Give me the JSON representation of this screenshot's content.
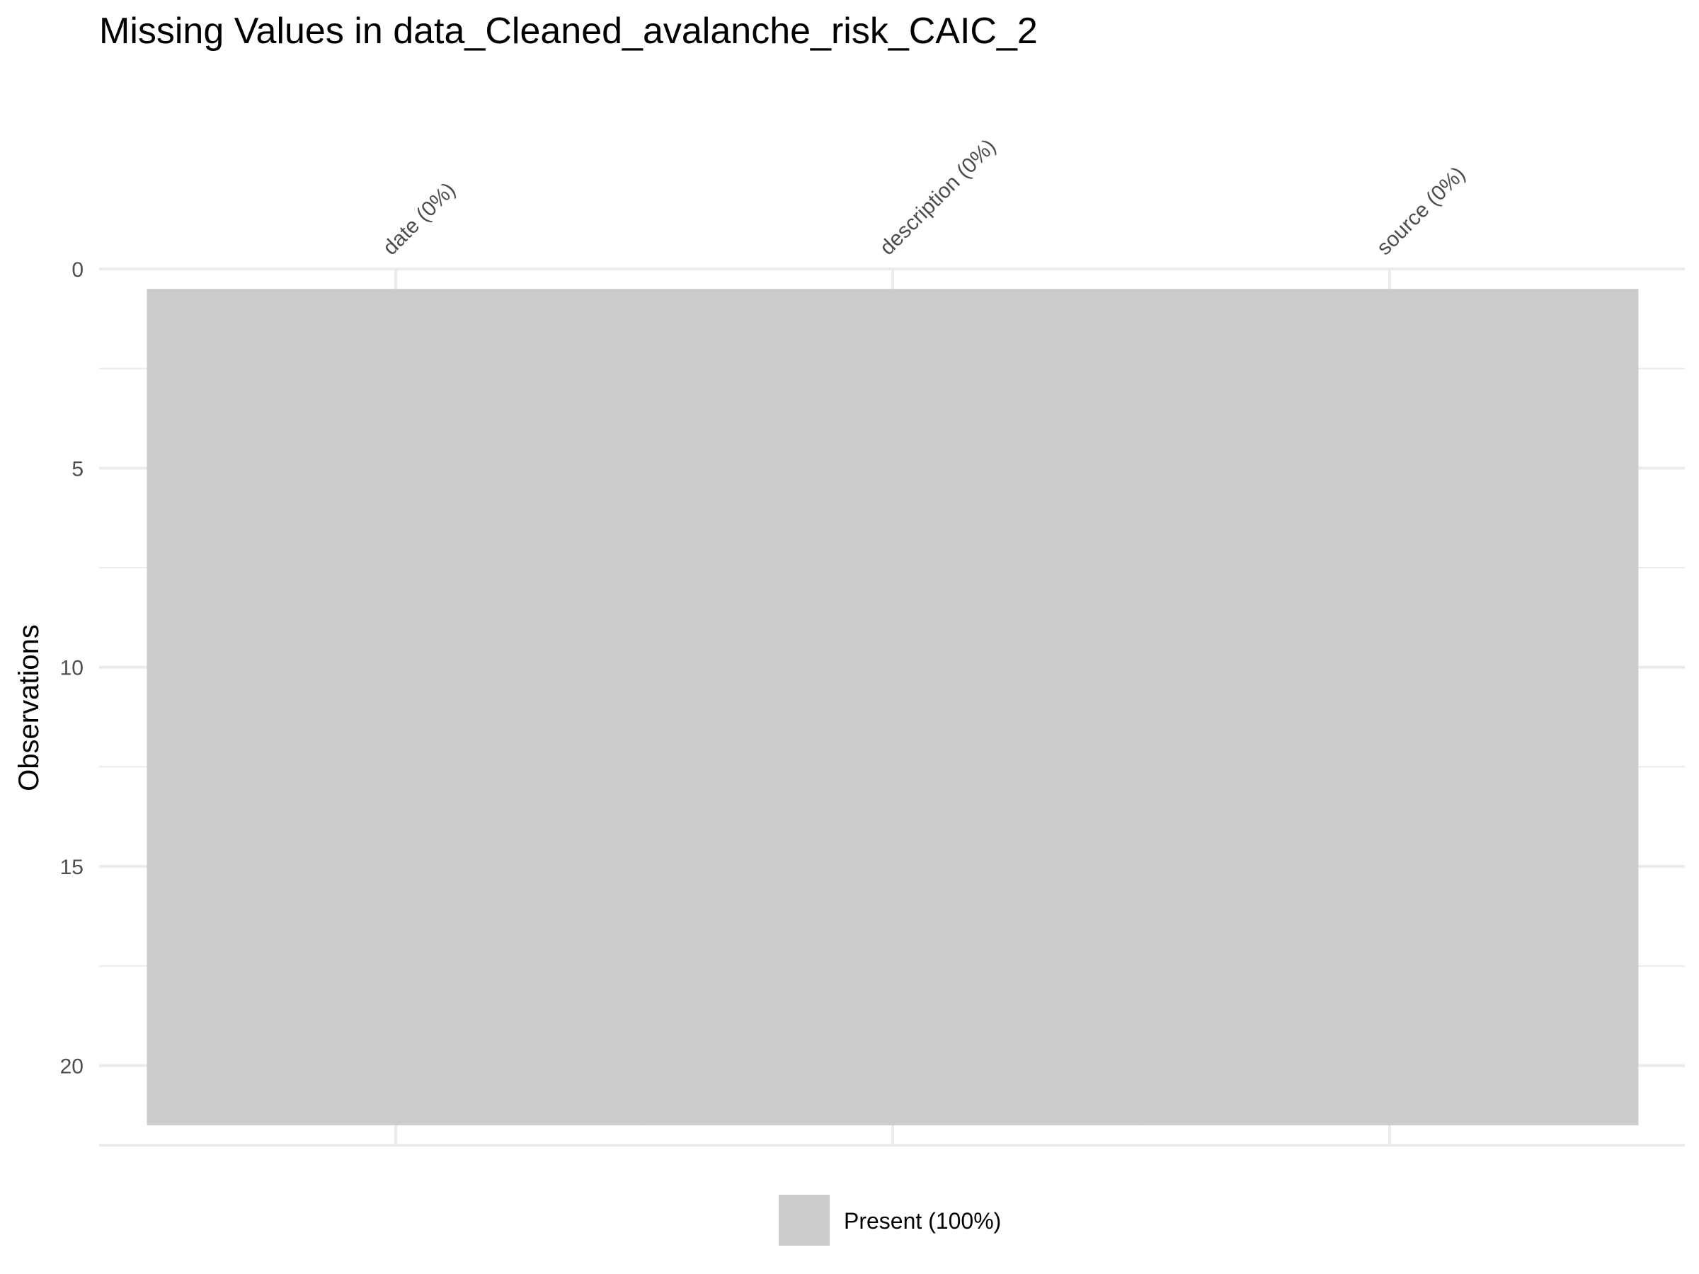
{
  "chart_data": {
    "type": "heatmap",
    "title": "Missing Values in data_Cleaned_avalanche_risk_CAIC_2",
    "ylabel": "Observations",
    "xlabel": "",
    "columns": [
      "date (0%)",
      "description (0%)",
      "source (0%)"
    ],
    "observations": 21,
    "ylim": [
      0,
      22
    ],
    "y_ticks": [
      0,
      5,
      10,
      15,
      20
    ],
    "y_reversed": true,
    "grid": true,
    "x_tick_rotation_deg": -45,
    "cells": [
      {
        "column": "date (0%)",
        "rows": [
          1,
          21
        ],
        "status": "Present"
      },
      {
        "column": "description (0%)",
        "rows": [
          1,
          21
        ],
        "status": "Present"
      },
      {
        "column": "source (0%)",
        "rows": [
          1,
          21
        ],
        "status": "Present"
      }
    ],
    "legend": {
      "position": "bottom",
      "entries": [
        {
          "label": "Present (100%)",
          "color": "#cccccc"
        }
      ]
    },
    "colors": {
      "present": "#cccccc",
      "grid": "#ebebeb"
    }
  }
}
